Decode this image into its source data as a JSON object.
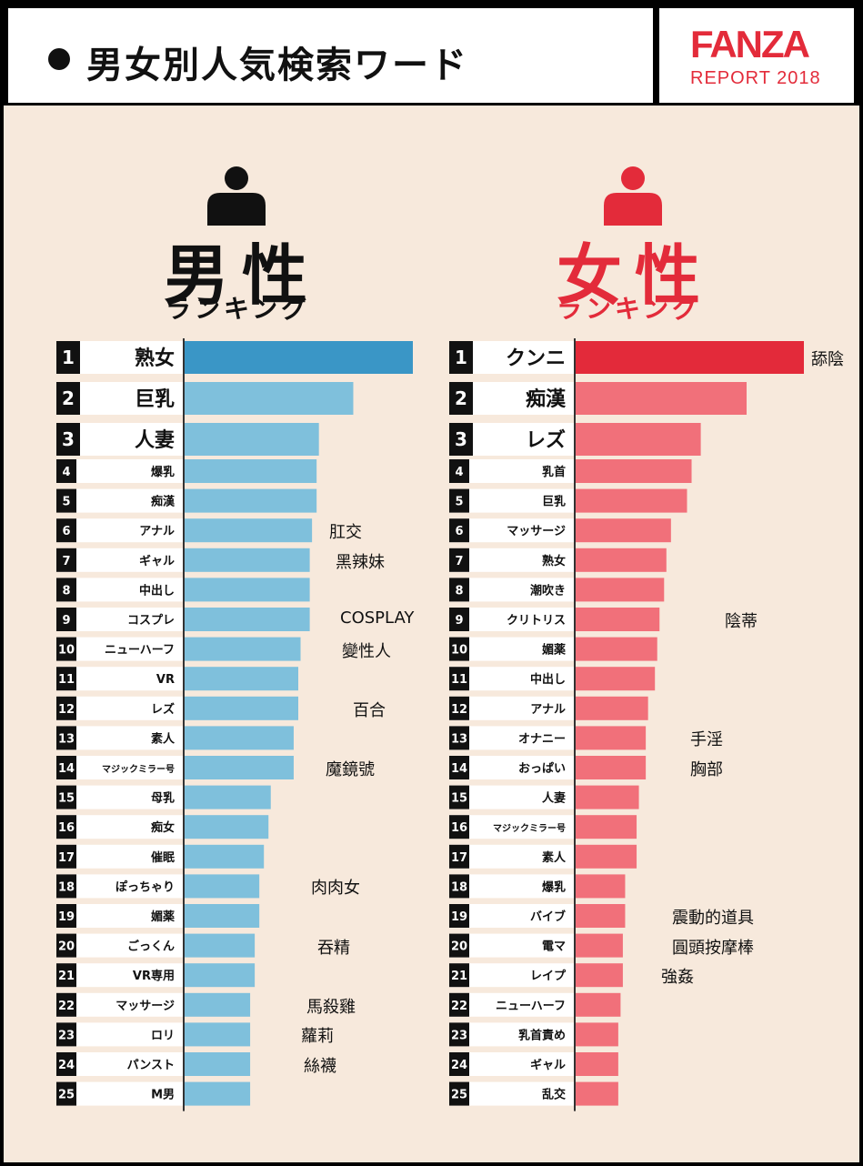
{
  "header": {
    "title": "男女別人気検索ワード",
    "logo_brand": "FANZA",
    "logo_sub": "REPORT 2018"
  },
  "male_heading": {
    "title": "男性",
    "subtitle": "ランキング"
  },
  "female_heading": {
    "title": "女性",
    "subtitle": "ランキング"
  },
  "colors": {
    "male_top": "#3a96c6",
    "male_bar": "#7fc0dc",
    "female_top": "#e32a3a",
    "female_bar": "#f1707a",
    "male_icon": "#111111",
    "female_icon": "#e32b3a"
  },
  "chart_data": [
    {
      "type": "bar",
      "series_title": "男性ランキング",
      "categories": [
        "熟女",
        "巨乳",
        "人妻",
        "爆乳",
        "痴漢",
        "アナル",
        "ギャル",
        "中出し",
        "コスプレ",
        "ニューハーフ",
        "VR",
        "レズ",
        "素人",
        "マジックミラー号",
        "母乳",
        "痴女",
        "催眠",
        "ぽっちゃり",
        "媚薬",
        "ごっくん",
        "VR専用",
        "マッサージ",
        "ロリ",
        "パンスト",
        "M男"
      ],
      "ranks": [
        "1",
        "2",
        "3",
        "4",
        "5",
        "6",
        "7",
        "8",
        "9",
        "10",
        "11",
        "12",
        "13",
        "14",
        "15",
        "16",
        "17",
        "18",
        "19",
        "20",
        "21",
        "22",
        "23",
        "24",
        "25"
      ],
      "values": [
        100,
        74,
        59,
        58,
        58,
        56,
        55,
        55,
        55,
        51,
        50,
        50,
        48,
        48,
        38,
        37,
        35,
        33,
        33,
        31,
        31,
        29,
        29,
        29,
        29
      ],
      "annotations": [
        {
          "rank": 6,
          "text": "肛交"
        },
        {
          "rank": 7,
          "text": "黑辣妹"
        },
        {
          "rank": 9,
          "text": "COSPLAY"
        },
        {
          "rank": 10,
          "text": "變性人"
        },
        {
          "rank": 12,
          "text": "百合"
        },
        {
          "rank": 14,
          "text": "魔鏡號"
        },
        {
          "rank": 18,
          "text": "肉肉女"
        },
        {
          "rank": 20,
          "text": "吞精"
        },
        {
          "rank": 22,
          "text": "馬殺雞"
        },
        {
          "rank": 23,
          "text": "蘿莉"
        },
        {
          "rank": 24,
          "text": "絲襪"
        }
      ]
    },
    {
      "type": "bar",
      "series_title": "女性ランキング",
      "categories": [
        "クンニ",
        "痴漢",
        "レズ",
        "乳首",
        "巨乳",
        "マッサージ",
        "熟女",
        "潮吹き",
        "クリトリス",
        "媚薬",
        "中出し",
        "アナル",
        "オナニー",
        "おっぱい",
        "人妻",
        "マジックミラー号",
        "素人",
        "爆乳",
        "バイブ",
        "電マ",
        "レイプ",
        "ニューハーフ",
        "乳首責め",
        "ギャル",
        "乱交"
      ],
      "ranks": [
        "1",
        "2",
        "3",
        "4",
        "5",
        "6",
        "7",
        "8",
        "9",
        "10",
        "11",
        "12",
        "13",
        "14",
        "15",
        "16",
        "17",
        "18",
        "19",
        "20",
        "21",
        "22",
        "23",
        "24",
        "25"
      ],
      "values": [
        100,
        75,
        55,
        51,
        49,
        42,
        40,
        39,
        37,
        36,
        35,
        32,
        31,
        31,
        28,
        27,
        27,
        22,
        22,
        21,
        21,
        20,
        19,
        19,
        19
      ],
      "annotations": [
        {
          "rank": 1,
          "text": "舔陰"
        },
        {
          "rank": 9,
          "text": "陰蒂"
        },
        {
          "rank": 13,
          "text": "手淫"
        },
        {
          "rank": 14,
          "text": "胸部"
        },
        {
          "rank": 19,
          "text": "震動的道具"
        },
        {
          "rank": 20,
          "text": "圓頭按摩棒"
        },
        {
          "rank": 21,
          "text": "強姦"
        }
      ]
    }
  ]
}
